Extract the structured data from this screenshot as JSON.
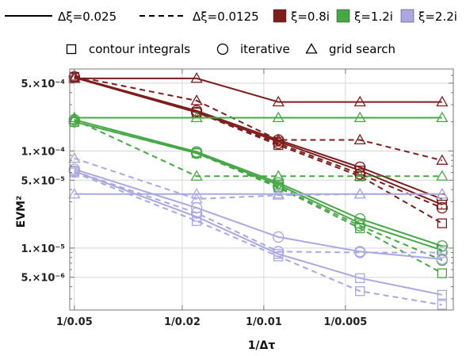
{
  "chart_data": {
    "type": "line",
    "xlabel": "1/Δτ",
    "ylabel": "EVM²",
    "x_scale": "reciprocal-log",
    "y_scale": "log",
    "xlim": [
      0.052,
      0.002
    ],
    "ylim": [
      2.3e-06,
      0.0007
    ],
    "grid": true,
    "x_ticks": [
      {
        "value": 0.05,
        "label": "1/0.05"
      },
      {
        "value": 0.02,
        "label": "1/0.02"
      },
      {
        "value": 0.01,
        "label": "1/0.01"
      },
      {
        "value": 0.005,
        "label": "1/0.005"
      }
    ],
    "y_ticks": [
      {
        "value": 0.0005,
        "label": "5.×10⁻⁴"
      },
      {
        "value": 0.0001,
        "label": "1.×10⁻⁴"
      },
      {
        "value": 5e-05,
        "label": "5.×10⁻⁵"
      },
      {
        "value": 1e-05,
        "label": "1.×10⁻⁵"
      },
      {
        "value": 5e-06,
        "label": "5.×10⁻⁶"
      }
    ],
    "legend_top": {
      "placement": "top",
      "line_styles": [
        {
          "label": "Δξ=0.025",
          "dash": "solid"
        },
        {
          "label": "Δξ=0.0125",
          "dash": "dashed"
        }
      ],
      "colors": [
        {
          "label": "ξ=0.8i",
          "color": "#7f1d1d"
        },
        {
          "label": "ξ=1.2i",
          "color": "#45a845"
        },
        {
          "label": "ξ=2.2i",
          "color": "#a9a8e2"
        }
      ]
    },
    "legend_markers": {
      "placement": "top",
      "items": [
        {
          "label": "contour integrals",
          "marker": "square"
        },
        {
          "label": "iterative",
          "marker": "circle"
        },
        {
          "label": "grid search",
          "marker": "triangle"
        }
      ]
    },
    "series": [
      {
        "color": "#7f1d1d",
        "dash": "solid",
        "marker": "square",
        "x": [
          0.05,
          0.0177,
          0.00884,
          0.00442,
          0.0022
        ],
        "y": [
          0.00057,
          0.00025,
          0.000125,
          6.3e-05,
          2.8e-05
        ]
      },
      {
        "color": "#7f1d1d",
        "dash": "solid",
        "marker": "circle",
        "x": [
          0.05,
          0.0177,
          0.00884,
          0.00442,
          0.0022
        ],
        "y": [
          0.00058,
          0.00026,
          0.00013,
          6.8e-05,
          3.2e-05
        ]
      },
      {
        "color": "#7f1d1d",
        "dash": "solid",
        "marker": "triangle",
        "x": [
          0.05,
          0.0177,
          0.00884,
          0.00442,
          0.0022
        ],
        "y": [
          0.00056,
          0.00056,
          0.00032,
          0.00032,
          0.00032
        ]
      },
      {
        "color": "#7f1d1d",
        "dash": "dashed",
        "marker": "square",
        "x": [
          0.05,
          0.0177,
          0.00884,
          0.00442,
          0.0022
        ],
        "y": [
          0.00058,
          0.00025,
          0.000115,
          5.5e-05,
          1.8e-05
        ]
      },
      {
        "color": "#7f1d1d",
        "dash": "dashed",
        "marker": "circle",
        "x": [
          0.05,
          0.0177,
          0.00884,
          0.00442,
          0.0022
        ],
        "y": [
          0.00058,
          0.00025,
          0.00012,
          5.8e-05,
          2.6e-05
        ]
      },
      {
        "color": "#7f1d1d",
        "dash": "dashed",
        "marker": "triangle",
        "x": [
          0.05,
          0.0177,
          0.00884,
          0.00442,
          0.0022
        ],
        "y": [
          0.00059,
          0.00033,
          0.00013,
          0.00013,
          8e-05
        ]
      },
      {
        "color": "#45a845",
        "dash": "solid",
        "marker": "square",
        "x": [
          0.05,
          0.0177,
          0.00884,
          0.00442,
          0.0022
        ],
        "y": [
          0.0002,
          9.5e-05,
          4.5e-05,
          1.8e-05,
          9.5e-06
        ]
      },
      {
        "color": "#45a845",
        "dash": "solid",
        "marker": "circle",
        "x": [
          0.05,
          0.0177,
          0.00884,
          0.00442,
          0.0022
        ],
        "y": [
          0.00021,
          9.8e-05,
          4.7e-05,
          2e-05,
          1.05e-05
        ]
      },
      {
        "color": "#45a845",
        "dash": "solid",
        "marker": "triangle",
        "x": [
          0.05,
          0.0177,
          0.00884,
          0.00442,
          0.0022
        ],
        "y": [
          0.00022,
          0.00022,
          0.00022,
          0.00022,
          0.00022
        ]
      },
      {
        "color": "#45a845",
        "dash": "dashed",
        "marker": "square",
        "x": [
          0.05,
          0.0177,
          0.00884,
          0.00442,
          0.0022
        ],
        "y": [
          0.0002,
          9.5e-05,
          4.2e-05,
          1.6e-05,
          5.5e-06
        ]
      },
      {
        "color": "#45a845",
        "dash": "dashed",
        "marker": "circle",
        "x": [
          0.05,
          0.0177,
          0.00884,
          0.00442,
          0.0022
        ],
        "y": [
          0.0002,
          9.5e-05,
          4.3e-05,
          1.7e-05,
          7.5e-06
        ]
      },
      {
        "color": "#45a845",
        "dash": "dashed",
        "marker": "triangle",
        "x": [
          0.05,
          0.0177,
          0.00884,
          0.00442,
          0.0022
        ],
        "y": [
          0.00021,
          5.5e-05,
          5.5e-05,
          5.5e-05,
          5.5e-05
        ]
      },
      {
        "color": "#a9a8e2",
        "dash": "solid",
        "marker": "square",
        "x": [
          0.05,
          0.0177,
          0.00884,
          0.00442,
          0.0022
        ],
        "y": [
          6.2e-05,
          2.1e-05,
          8.7e-06,
          4.9e-06,
          3.3e-06
        ]
      },
      {
        "color": "#a9a8e2",
        "dash": "solid",
        "marker": "circle",
        "x": [
          0.05,
          0.0177,
          0.00884,
          0.00442,
          0.0022
        ],
        "y": [
          6.5e-05,
          2.6e-05,
          1.3e-05,
          9.2e-06,
          7.7e-06
        ]
      },
      {
        "color": "#a9a8e2",
        "dash": "solid",
        "marker": "triangle",
        "x": [
          0.05,
          0.0177,
          0.00884,
          0.00442,
          0.0022
        ],
        "y": [
          3.6e-05,
          3.6e-05,
          3.6e-05,
          3.6e-05,
          3.6e-05
        ]
      },
      {
        "color": "#a9a8e2",
        "dash": "dashed",
        "marker": "square",
        "x": [
          0.05,
          0.0177,
          0.00884,
          0.00442,
          0.0022
        ],
        "y": [
          6e-05,
          1.9e-05,
          8.2e-06,
          3.6e-06,
          2.6e-06
        ]
      },
      {
        "color": "#a9a8e2",
        "dash": "dashed",
        "marker": "circle",
        "x": [
          0.05,
          0.0177,
          0.00884,
          0.00442,
          0.0022
        ],
        "y": [
          6.2e-05,
          2.3e-05,
          9.2e-06,
          9e-06,
          9e-06
        ]
      },
      {
        "color": "#a9a8e2",
        "dash": "dashed",
        "marker": "triangle",
        "x": [
          0.05,
          0.0177,
          0.00884,
          0.00442,
          0.0022
        ],
        "y": [
          8.4e-05,
          3.2e-05,
          3.5e-05,
          3.6e-05,
          3.6e-05
        ]
      }
    ]
  }
}
